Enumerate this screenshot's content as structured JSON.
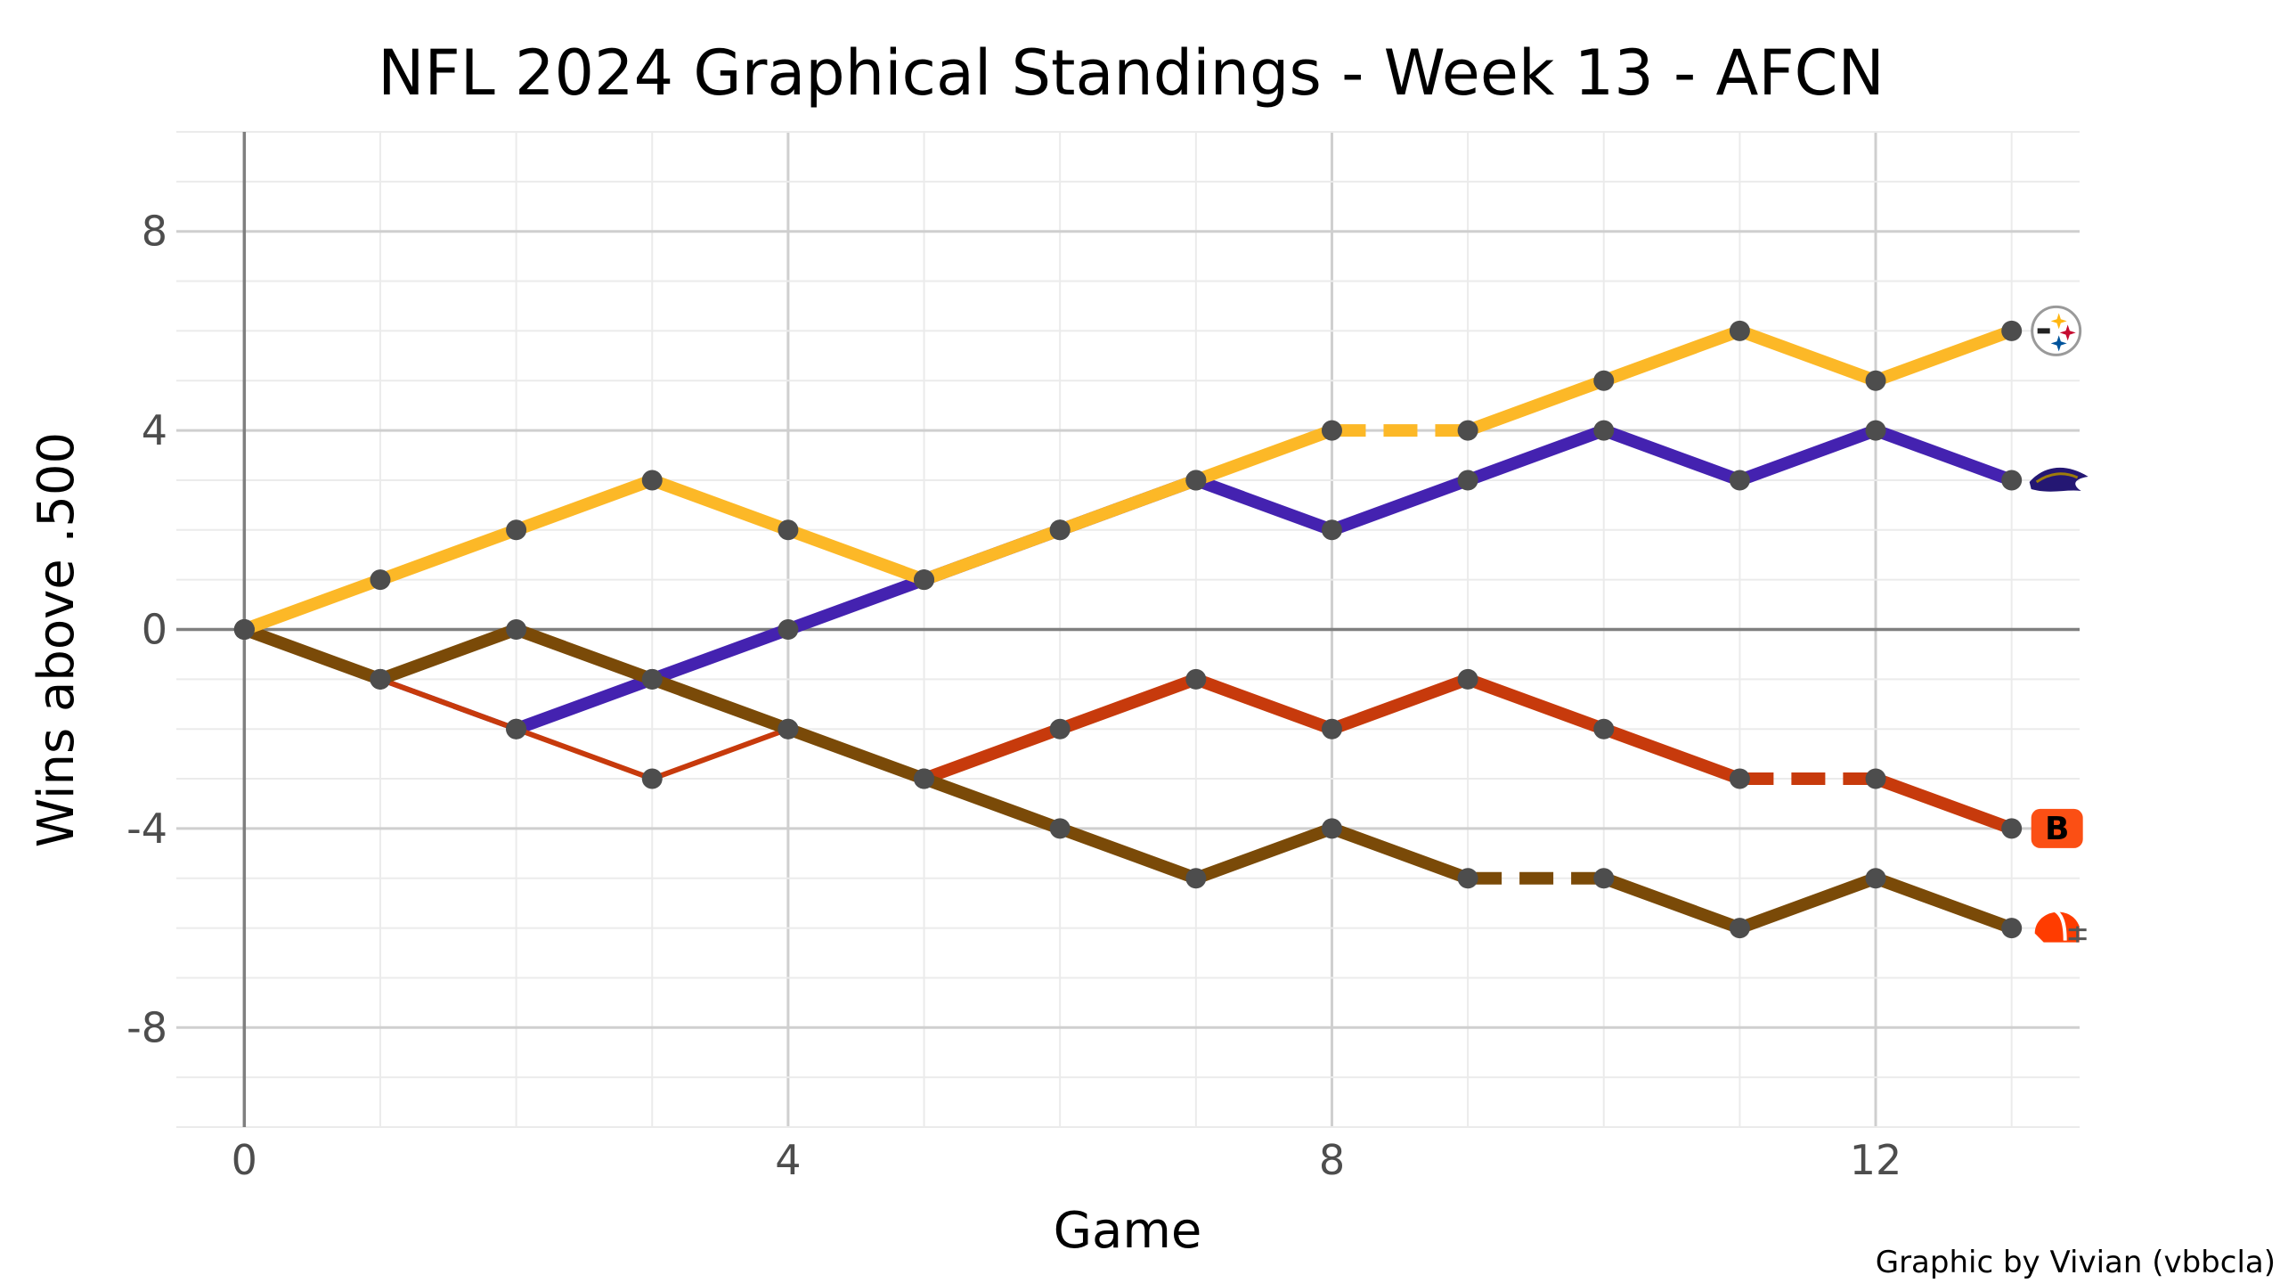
{
  "chart_data": {
    "type": "line",
    "title": "NFL 2024 Graphical Standings - Week 13 - AFCN",
    "xlabel": "Game",
    "ylabel": "Wins above .500",
    "caption": "Graphic by Vivian (vbbcla)",
    "xlim": [
      -0.5,
      13.5
    ],
    "ylim": [
      -10,
      10
    ],
    "x_ticks": [
      0,
      4,
      8,
      12
    ],
    "x_tick_labels": [
      "0",
      "4",
      "8",
      "12"
    ],
    "y_ticks": [
      -8,
      -4,
      0,
      4,
      8
    ],
    "y_tick_labels": [
      "-8",
      "-4",
      "0",
      "4",
      "8"
    ],
    "grid": true,
    "legend": "none",
    "series": [
      {
        "team": "Ravens",
        "logo": "ravens-logo-icon",
        "color": "#4422B0",
        "x": [
          0,
          1,
          2,
          3,
          4,
          5,
          6,
          7,
          8,
          9,
          10,
          11,
          12,
          13
        ],
        "values": [
          0,
          -1,
          -2,
          -1,
          0,
          1,
          2,
          3,
          2,
          3,
          4,
          3,
          4,
          3
        ],
        "bye_after_game": null
      },
      {
        "team": "Bengals",
        "logo": "bengals-logo-icon",
        "color": "#C73A0C",
        "x": [
          0,
          1,
          2,
          3,
          4,
          5,
          6,
          7,
          8,
          9,
          10,
          11,
          12,
          13
        ],
        "values": [
          0,
          -1,
          -2,
          -3,
          -2,
          -3,
          -2,
          -1,
          -2,
          -1,
          -2,
          -3,
          -3,
          -4
        ],
        "bye_after_game": 11
      },
      {
        "team": "Browns",
        "logo": "browns-logo-icon",
        "color": "#7A4A08",
        "x": [
          0,
          1,
          2,
          3,
          4,
          5,
          6,
          7,
          8,
          9,
          10,
          11,
          12,
          13
        ],
        "values": [
          0,
          -1,
          0,
          -1,
          -2,
          -3,
          -4,
          -5,
          -4,
          -5,
          -5,
          -6,
          -5,
          -6
        ],
        "bye_after_game": 9
      },
      {
        "team": "Steelers",
        "logo": "steelers-logo-icon",
        "color": "#FCB827",
        "x": [
          0,
          1,
          2,
          3,
          4,
          5,
          6,
          7,
          8,
          9,
          10,
          11,
          12,
          13
        ],
        "values": [
          0,
          1,
          2,
          3,
          2,
          1,
          2,
          3,
          4,
          4,
          5,
          6,
          5,
          6
        ],
        "bye_after_game": 8
      }
    ],
    "point_color": "#4D4D4D"
  }
}
